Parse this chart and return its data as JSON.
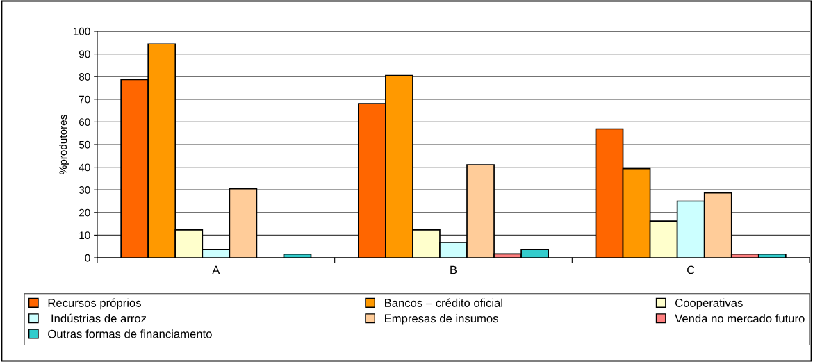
{
  "chart_data": {
    "type": "bar",
    "ylabel": "%produtores",
    "categories": [
      "A",
      "B",
      "C"
    ],
    "series": [
      {
        "name": "Recursos próprios",
        "color": "#ff6600",
        "values": [
          78.7,
          68.1,
          56.9
        ]
      },
      {
        "name": "Bancos – crédito oficial",
        "color": "#ff9900",
        "values": [
          94.4,
          80.5,
          39.4
        ]
      },
      {
        "name": "Cooperativas",
        "color": "#ffffcc",
        "values": [
          12.3,
          12.3,
          16.2
        ]
      },
      {
        "name": " Indústrias de arroz",
        "color": "#ccffff",
        "values": [
          3.6,
          6.8,
          25.0
        ]
      },
      {
        "name": "Empresas de insumos",
        "color": "#ffcc99",
        "values": [
          30.5,
          41.1,
          28.6
        ]
      },
      {
        "name": "Venda no mercado futuro",
        "color": "#ff8080",
        "values": [
          null,
          1.7,
          1.6
        ]
      },
      {
        "name": "Outras formas de financiamento",
        "color": "#33cccc",
        "values": [
          1.6,
          3.6,
          1.6
        ]
      }
    ],
    "ylim": [
      0,
      100
    ],
    "yticks": [
      0,
      10,
      20,
      30,
      40,
      50,
      60,
      70,
      80,
      90,
      100
    ],
    "grid": "y",
    "legend": "bottom"
  }
}
